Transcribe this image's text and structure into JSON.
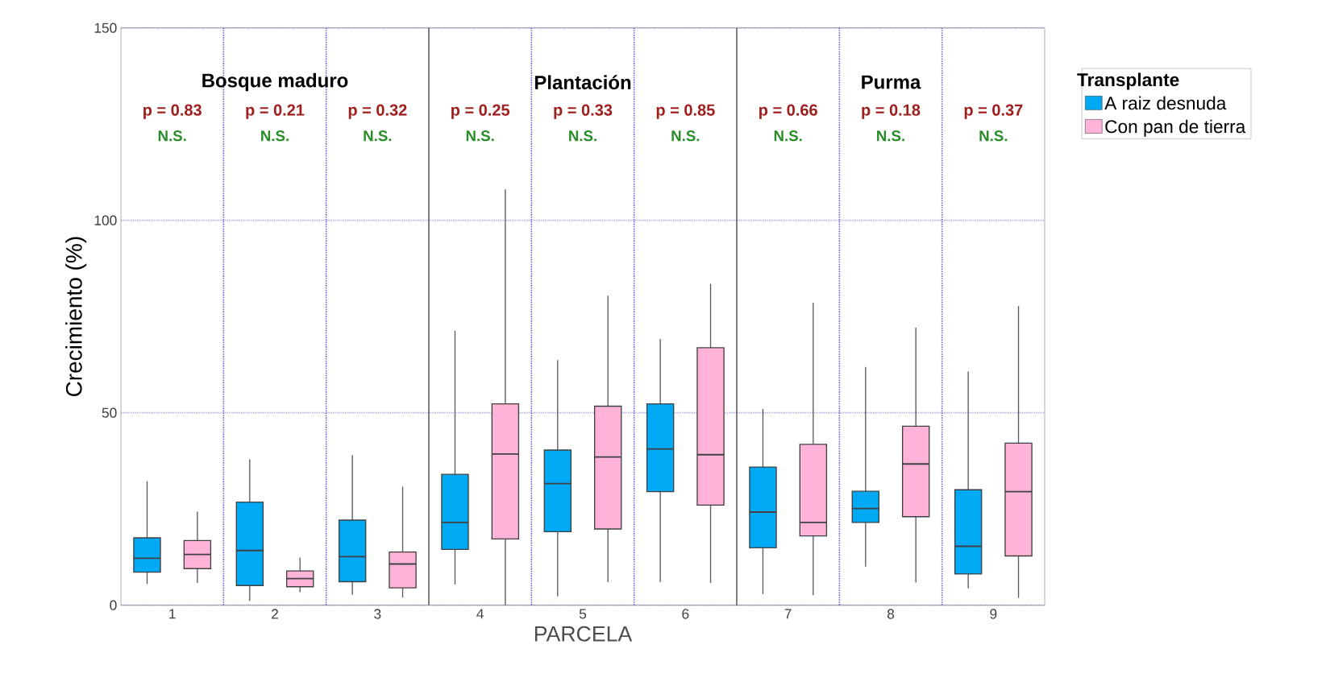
{
  "chart_data": {
    "type": "box",
    "categories": [
      "1",
      "2",
      "3",
      "4",
      "5",
      "6",
      "7",
      "8",
      "9"
    ],
    "series": [
      {
        "name": "A raiz desnuda",
        "color": "#00a9f4",
        "boxes": [
          {
            "low": 5.5,
            "q1": 8.6,
            "median": 12.2,
            "q3": 17.5,
            "high": 32.2
          },
          {
            "low": 1.1,
            "q1": 5.1,
            "median": 14.2,
            "q3": 26.8,
            "high": 37.9
          },
          {
            "low": 2.7,
            "q1": 6.1,
            "median": 12.6,
            "q3": 22.1,
            "high": 39.0
          },
          {
            "low": 5.4,
            "q1": 14.5,
            "median": 21.5,
            "q3": 34.0,
            "high": 71.3
          },
          {
            "low": 2.3,
            "q1": 19.1,
            "median": 31.6,
            "q3": 40.3,
            "high": 63.7
          },
          {
            "low": 6.0,
            "q1": 29.5,
            "median": 40.6,
            "q3": 52.3,
            "high": 69.2
          },
          {
            "low": 2.9,
            "q1": 14.9,
            "median": 24.2,
            "q3": 35.9,
            "high": 51.0
          },
          {
            "low": 10.0,
            "q1": 21.5,
            "median": 25.1,
            "q3": 29.6,
            "high": 61.9
          },
          {
            "low": 4.4,
            "q1": 8.1,
            "median": 15.3,
            "q3": 30.0,
            "high": 60.7
          }
        ]
      },
      {
        "name": "Con pan de tierra",
        "color": "#ffb3d9",
        "boxes": [
          {
            "low": 5.8,
            "q1": 9.5,
            "median": 13.2,
            "q3": 16.8,
            "high": 24.3
          },
          {
            "low": 3.4,
            "q1": 4.8,
            "median": 6.9,
            "q3": 8.9,
            "high": 12.4
          },
          {
            "low": 2.0,
            "q1": 4.5,
            "median": 10.7,
            "q3": 13.8,
            "high": 30.8
          },
          {
            "low": 0,
            "q1": 17.2,
            "median": 39.3,
            "q3": 52.3,
            "high": 108.1
          },
          {
            "low": 6.0,
            "q1": 19.8,
            "median": 38.5,
            "q3": 51.7,
            "high": 80.4
          },
          {
            "low": 5.8,
            "q1": 26.0,
            "median": 39.1,
            "q3": 66.9,
            "high": 83.5
          },
          {
            "low": 2.6,
            "q1": 18.0,
            "median": 21.5,
            "q3": 41.8,
            "high": 78.6
          },
          {
            "low": 5.9,
            "q1": 23.0,
            "median": 36.7,
            "q3": 46.5,
            "high": 72.1
          },
          {
            "low": 1.9,
            "q1": 12.8,
            "median": 29.5,
            "q3": 42.1,
            "high": 77.7
          }
        ]
      }
    ],
    "xlabel": "PARCELA",
    "ylabel": "Crecimiento (%)",
    "legend_title": "Transplante",
    "ylim": [
      0,
      150
    ],
    "yticks": [
      0,
      50,
      100,
      150
    ],
    "grid": true,
    "legend": "top right",
    "annotations": [
      "Bosque maduro",
      "Plantación",
      "Purma",
      "p = 0.83",
      "p = 0.21",
      "p = 0.32",
      "p = 0.25",
      "p = 0.33",
      "p = 0.85",
      "p = 0.66",
      "p = 0.18",
      "p = 0.37",
      "N.S.",
      "N.S.",
      "N.S.",
      "N.S.",
      "N.S.",
      "N.S.",
      "N.S.",
      "N.S.",
      "N.S."
    ]
  }
}
